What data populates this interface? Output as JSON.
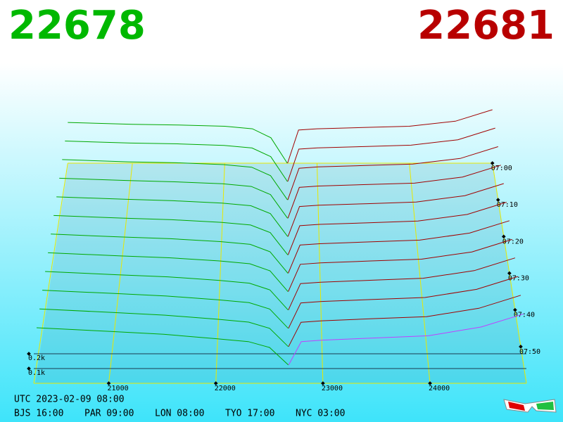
{
  "best_bid": 22678,
  "best_ask": 22681,
  "chart_data": {
    "type": "depth3d",
    "xlim": [
      20300,
      24900
    ],
    "xticks": [
      21000,
      22000,
      23000,
      24000
    ],
    "zlim": [
      0,
      500
    ],
    "zticks": [
      {
        "value": 100,
        "label": "0.1k"
      },
      {
        "value": 200,
        "label": "0.2k"
      }
    ],
    "tlim": [
      "07:00",
      "08:00"
    ],
    "tticks": [
      "07:00",
      "07:10",
      "07:20",
      "07:30",
      "07:40",
      "07:50"
    ],
    "bid": {
      "color": "#00a800",
      "prices": [
        20300,
        21000,
        21500,
        22000,
        22300,
        22500,
        22678
      ]
    },
    "ask": {
      "color": "#a00000",
      "front_color": "#c040ff",
      "prices": [
        22681,
        22800,
        23000,
        23500,
        24000,
        24500,
        24900
      ]
    },
    "snapshots": [
      {
        "time": "07:00",
        "bid": [
          320,
          305,
          300,
          290,
          270,
          200,
          0
        ],
        "ask": [
          0,
          260,
          270,
          280,
          290,
          330,
          420
        ]
      },
      {
        "time": "07:05",
        "bid": [
          314,
          298,
          292,
          280,
          260,
          193,
          0
        ],
        "ask": [
          0,
          251,
          261,
          271,
          282,
          324,
          414
        ]
      },
      {
        "time": "07:10",
        "bid": [
          308,
          291,
          284,
          270,
          250,
          185,
          0
        ],
        "ask": [
          0,
          242,
          252,
          263,
          274,
          317,
          407
        ]
      },
      {
        "time": "07:15",
        "bid": [
          302,
          285,
          275,
          260,
          240,
          178,
          0
        ],
        "ask": [
          0,
          233,
          243,
          254,
          265,
          311,
          401
        ]
      },
      {
        "time": "07:20",
        "bid": [
          296,
          278,
          267,
          250,
          230,
          171,
          0
        ],
        "ask": [
          0,
          224,
          234,
          245,
          257,
          305,
          395
        ]
      },
      {
        "time": "07:25",
        "bid": [
          290,
          271,
          259,
          240,
          220,
          164,
          0
        ],
        "ask": [
          0,
          215,
          225,
          237,
          249,
          298,
          388
        ]
      },
      {
        "time": "07:30",
        "bid": [
          285,
          264,
          251,
          230,
          210,
          156,
          0
        ],
        "ask": [
          0,
          205,
          215,
          228,
          241,
          292,
          382
        ]
      },
      {
        "time": "07:35",
        "bid": [
          279,
          257,
          243,
          220,
          200,
          149,
          0
        ],
        "ask": [
          0,
          196,
          206,
          220,
          233,
          285,
          375
        ]
      },
      {
        "time": "07:40",
        "bid": [
          273,
          250,
          235,
          210,
          190,
          142,
          0
        ],
        "ask": [
          0,
          187,
          197,
          211,
          225,
          279,
          369
        ]
      },
      {
        "time": "07:45",
        "bid": [
          267,
          244,
          226,
          200,
          180,
          135,
          0
        ],
        "ask": [
          0,
          178,
          188,
          202,
          216,
          273,
          363
        ]
      },
      {
        "time": "07:50",
        "bid": [
          261,
          237,
          218,
          190,
          170,
          127,
          0
        ],
        "ask": [
          0,
          169,
          179,
          194,
          208,
          266,
          356
        ]
      },
      {
        "time": "07:55",
        "bid": [
          255,
          230,
          210,
          180,
          160,
          120,
          0
        ],
        "ask": [
          0,
          160,
          170,
          185,
          200,
          260,
          350
        ]
      }
    ]
  },
  "footer": {
    "utc": "UTC 2023-02-09 08:00",
    "clocks": [
      "BJS 16:00",
      "PAR 09:00",
      "LON 08:00",
      "TYO 17:00",
      "NYC 03:00"
    ]
  }
}
